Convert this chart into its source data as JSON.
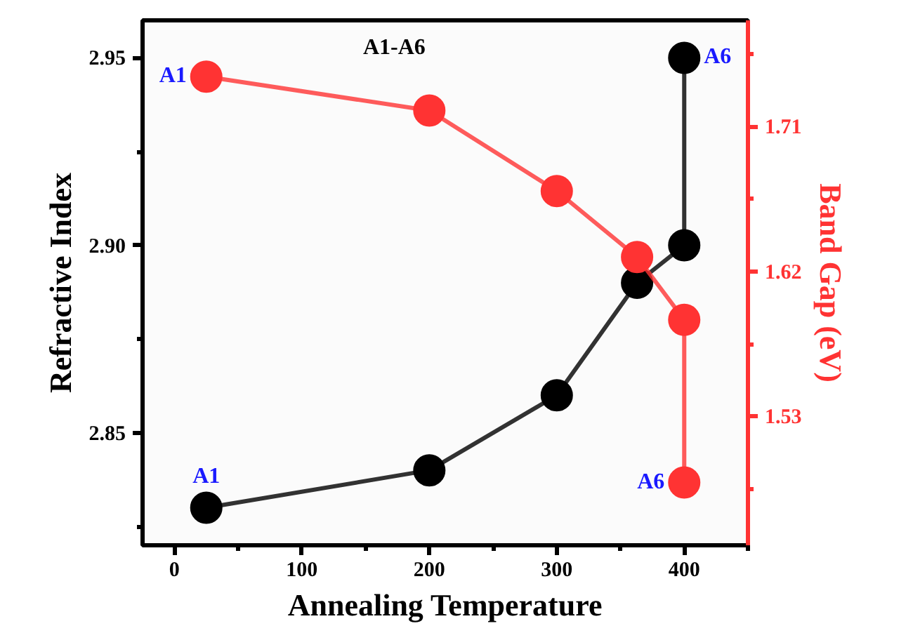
{
  "chart_data": {
    "type": "line",
    "title": "A1-A6",
    "xlabel": "Annealing Temperature",
    "ylabel": "Refractive Index",
    "y2label": "Band Gap (eV)",
    "xlim": [
      -25,
      450
    ],
    "xticks": [
      0,
      100,
      200,
      300,
      400
    ],
    "ylim": [
      2.82,
      2.96
    ],
    "yticks": [
      2.85,
      {
        "value": 2.9,
        "label": "2.90"
      },
      2.95
    ],
    "y2lim": [
      1.45,
      1.776
    ],
    "y2ticks": [
      1.53,
      1.62,
      1.71
    ],
    "marker": "circle",
    "grid": false,
    "series": [
      {
        "color": "#000000",
        "x": [
          25,
          200,
          300,
          363,
          400,
          400
        ],
        "values": [
          2.83,
          2.84,
          2.86,
          2.89,
          2.9,
          2.95
        ],
        "value_labels": [
          "A1",
          null,
          null,
          null,
          null,
          "A6"
        ]
      },
      {
        "color": "#ff3333",
        "axis": "y2",
        "x": [
          25,
          200,
          300,
          363,
          400,
          400
        ],
        "values": [
          1.741,
          1.72,
          1.67,
          1.629,
          1.59,
          1.489
        ],
        "value_labels": [
          "A1",
          null,
          null,
          null,
          null,
          "A6"
        ]
      }
    ]
  }
}
